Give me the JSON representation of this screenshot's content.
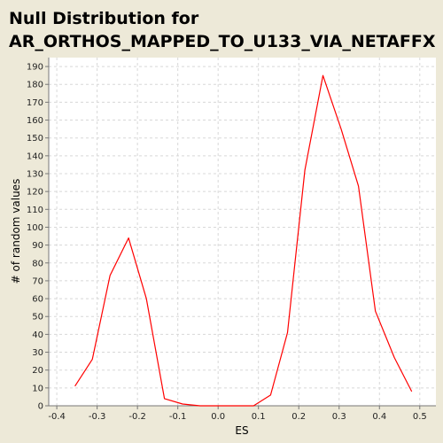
{
  "chart_data": {
    "type": "line",
    "title_lines": [
      "Null Distribution for",
      "AR_ORTHOS_MAPPED_TO_U133_VIA_NETAFFX"
    ],
    "xlabel": "ES",
    "ylabel": "# of random values",
    "xlim": [
      -0.42,
      0.54
    ],
    "ylim": [
      0,
      195
    ],
    "x_ticks": [
      -0.4,
      -0.3,
      -0.2,
      -0.1,
      0.0,
      0.1,
      0.2,
      0.3,
      0.4,
      0.5
    ],
    "x_tick_labels": [
      "-0.4",
      "-0.3",
      "-0.2",
      "-0.1",
      "0.0",
      "0.1",
      "0.2",
      "0.3",
      "0.4",
      "0.5"
    ],
    "y_ticks": [
      0,
      10,
      20,
      30,
      40,
      50,
      60,
      70,
      80,
      90,
      100,
      110,
      120,
      130,
      140,
      150,
      160,
      170,
      180,
      190
    ],
    "grid": true,
    "series": [
      {
        "color": "#ff0000",
        "x": [
          -0.355,
          -0.312,
          -0.268,
          -0.222,
          -0.178,
          -0.133,
          -0.088,
          -0.045,
          0.0,
          0.045,
          0.088,
          0.13,
          0.172,
          0.215,
          0.26,
          0.305,
          0.348,
          0.39,
          0.437,
          0.48
        ],
        "y": [
          11,
          26,
          73,
          94,
          60,
          4,
          1,
          0,
          0,
          0,
          0,
          6,
          41,
          132,
          185,
          155,
          123,
          53,
          27,
          8
        ]
      }
    ]
  }
}
